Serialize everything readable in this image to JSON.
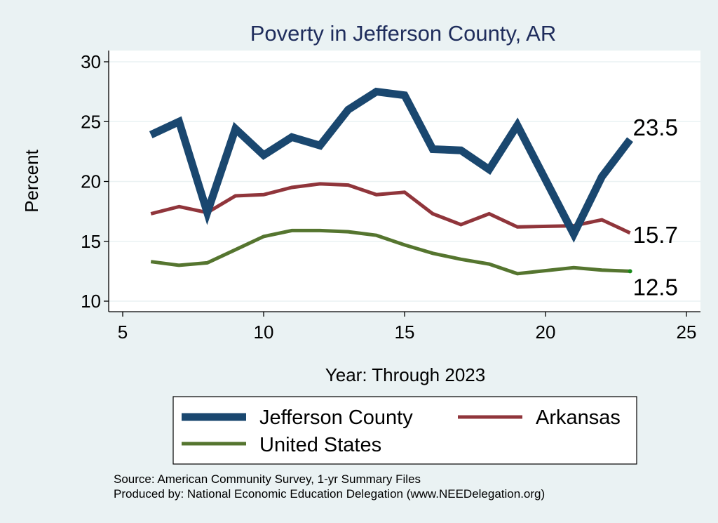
{
  "chart_data": {
    "type": "line",
    "title": "Poverty in Jefferson County, AR",
    "xlabel": "Year: Through 2023",
    "ylabel": "Percent",
    "xlim": [
      5,
      25
    ],
    "ylim": [
      10,
      30
    ],
    "xticks": [
      5,
      10,
      15,
      20,
      25
    ],
    "yticks": [
      10,
      15,
      20,
      25,
      30
    ],
    "x": [
      6,
      7,
      8,
      9,
      10,
      11,
      12,
      13,
      14,
      15,
      16,
      17,
      18,
      19,
      21,
      22,
      23
    ],
    "series": [
      {
        "name": "Jefferson County",
        "color": "#1a476f",
        "values": [
          23.9,
          25.0,
          17.4,
          24.4,
          22.2,
          23.7,
          23.0,
          26.0,
          27.5,
          27.2,
          22.7,
          22.6,
          21.0,
          24.7,
          15.6,
          20.4,
          23.5
        ],
        "end_label": "23.5"
      },
      {
        "name": "Arkansas",
        "color": "#90353b",
        "values": [
          17.3,
          17.9,
          17.4,
          18.8,
          18.9,
          19.5,
          19.8,
          19.7,
          18.9,
          19.1,
          17.3,
          16.4,
          17.3,
          16.2,
          16.3,
          16.8,
          15.7
        ],
        "end_label": "15.7"
      },
      {
        "name": "United States",
        "color": "#55752f",
        "values": [
          13.3,
          13.0,
          13.2,
          14.3,
          15.4,
          15.9,
          15.9,
          15.8,
          15.5,
          14.7,
          14.0,
          13.5,
          13.1,
          12.3,
          12.8,
          12.6,
          12.5
        ],
        "end_label": "12.5"
      }
    ],
    "legend_position": "bottom"
  },
  "legend": {
    "items": [
      {
        "label": "Jefferson County",
        "color": "#1a476f"
      },
      {
        "label": "Arkansas",
        "color": "#90353b"
      },
      {
        "label": "United States",
        "color": "#55752f"
      }
    ]
  },
  "footer": {
    "source": "Source: American Community Survey, 1-yr Summary Files",
    "produced": "Produced by: National Economic Education Delegation (www.NEEDelegation.org)"
  }
}
